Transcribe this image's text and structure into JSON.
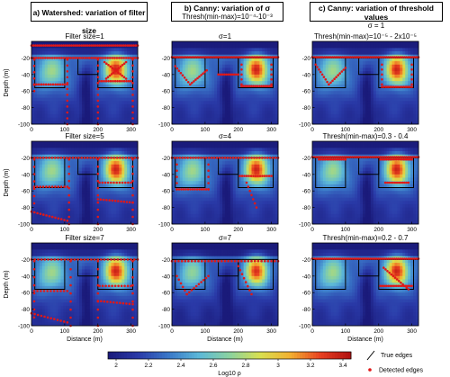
{
  "figure": {
    "columns": [
      {
        "title": "a) Watershed: variation of filter size",
        "subtitle": ""
      },
      {
        "title": "b) Canny: variation of σ",
        "subtitle": "Thresh(min-max)=10⁻⁴-10⁻³"
      },
      {
        "title": "c) Canny: variation of threshold values",
        "subtitle": "σ = 1"
      }
    ],
    "panel_labels": [
      [
        "Filter size=1",
        "σ=1",
        "Thresh(min-max)=10⁻⁵ - 2x10⁻⁵"
      ],
      [
        "Filter size=5",
        "σ=4",
        "Thresh(min-max)=0.3 - 0.4"
      ],
      [
        "Filter size=7",
        "σ=7",
        "Thresh(min-max)=0.2 - 0.7"
      ]
    ],
    "ylabel": "Depth (m)",
    "xlabel": "Distance (m)",
    "colorbar": {
      "label": "Log10 ρ",
      "ticks": [
        "2",
        "2.2",
        "2.4",
        "2.6",
        "2.8",
        "3",
        "3.2",
        "3.4"
      ],
      "colors": [
        "#1a1a7a",
        "#2a3aa8",
        "#3a78c8",
        "#5cb8d8",
        "#8ad2a0",
        "#d8e050",
        "#f2b030",
        "#e84020",
        "#b01010"
      ]
    },
    "legend": {
      "true_edges": "True edges",
      "detected_edges": "Detected edges"
    }
  },
  "chart_data": {
    "type": "heatmap",
    "x": {
      "label": "Distance (m)",
      "lim": [
        0,
        320
      ],
      "ticks": [
        0,
        100,
        200,
        300
      ]
    },
    "y": {
      "label": "Depth (m)",
      "lim": [
        -100,
        0
      ],
      "ticks": [
        -20,
        -40,
        -60,
        -80,
        -100
      ]
    },
    "true_edges": [
      [
        [
          0,
          -20
        ],
        [
          320,
          -20
        ]
      ],
      [
        [
          10,
          -20
        ],
        [
          10,
          -56
        ],
        [
          100,
          -56
        ],
        [
          100,
          -20
        ]
      ],
      [
        [
          140,
          -20
        ],
        [
          140,
          -40
        ],
        [
          200,
          -40
        ],
        [
          200,
          -20
        ]
      ],
      [
        [
          200,
          -20
        ],
        [
          200,
          -56
        ],
        [
          305,
          -56
        ],
        [
          305,
          -20
        ]
      ]
    ],
    "resistivity_anomalies": [
      {
        "center": [
          255,
          -35
        ],
        "peak_log10_rho": 3.35
      },
      {
        "center": [
          60,
          -38
        ],
        "peak_log10_rho": 2.75
      }
    ],
    "colorbar_range": [
      1.95,
      3.45
    ]
  }
}
